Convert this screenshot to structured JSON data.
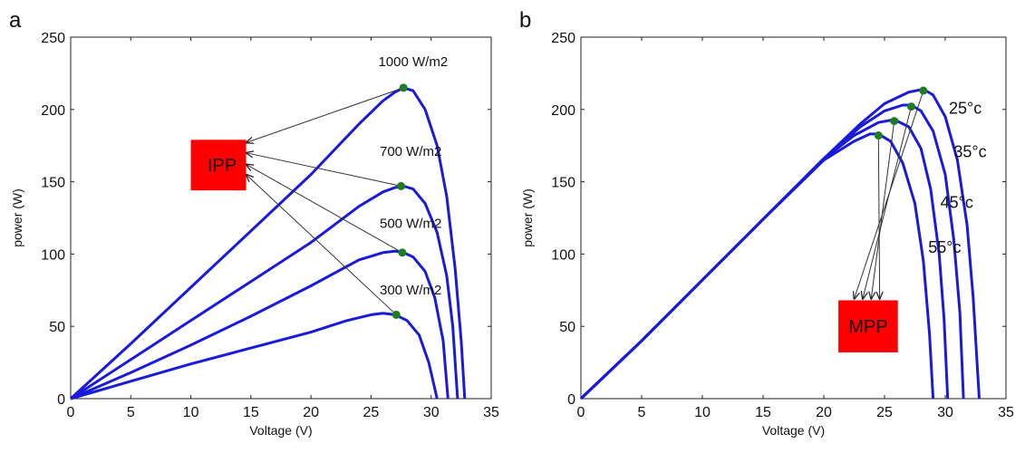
{
  "colors": {
    "curve": "#1a1adb",
    "point": "#1e7d1e",
    "box": "#ff0000",
    "arrow": "#333333"
  },
  "chart_data": [
    {
      "panel_label": "a",
      "type": "line",
      "title": "",
      "xlabel": "Voltage (V)",
      "ylabel": "power (W)",
      "xlim": [
        0,
        35
      ],
      "ylim": [
        0,
        250
      ],
      "xticks": [
        "0",
        "5",
        "10",
        "15",
        "20",
        "25",
        "30",
        "35"
      ],
      "yticks": [
        "0",
        "50",
        "100",
        "150",
        "200",
        "250"
      ],
      "grid": false,
      "series": [
        {
          "label": "1000 W/m2",
          "points": [
            [
              0,
              0
            ],
            [
              5,
              38
            ],
            [
              10,
              77
            ],
            [
              15,
              116
            ],
            [
              20,
              155
            ],
            [
              24,
              190
            ],
            [
              26,
              206
            ],
            [
              27,
              212
            ],
            [
              27.7,
              215
            ],
            [
              28.5,
              213
            ],
            [
              29.5,
              200
            ],
            [
              30.5,
              175
            ],
            [
              31.3,
              140
            ],
            [
              32,
              90
            ],
            [
              32.5,
              40
            ],
            [
              32.8,
              0
            ]
          ],
          "mpp": [
            27.7,
            215
          ],
          "label_pos": [
            28.5,
            230
          ]
        },
        {
          "label": "700 W/m2",
          "points": [
            [
              0,
              0
            ],
            [
              5,
              27
            ],
            [
              10,
              54
            ],
            [
              15,
              81
            ],
            [
              20,
              108
            ],
            [
              24,
              133
            ],
            [
              26,
              143
            ],
            [
              27,
              146
            ],
            [
              27.7,
              147
            ],
            [
              28.5,
              145
            ],
            [
              29.5,
              135
            ],
            [
              30.5,
              115
            ],
            [
              31.3,
              85
            ],
            [
              31.8,
              50
            ],
            [
              32.2,
              0
            ]
          ],
          "mpp": [
            27.5,
            147
          ],
          "label_pos": [
            28.3,
            168
          ]
        },
        {
          "label": "500 W/m2",
          "points": [
            [
              0,
              0
            ],
            [
              5,
              18
            ],
            [
              10,
              37
            ],
            [
              15,
              57
            ],
            [
              20,
              78
            ],
            [
              24,
              96
            ],
            [
              26,
              101
            ],
            [
              27,
              102
            ],
            [
              27.7,
              101
            ],
            [
              28.5,
              98
            ],
            [
              29.5,
              88
            ],
            [
              30.3,
              70
            ],
            [
              31,
              40
            ],
            [
              31.4,
              0
            ]
          ],
          "mpp": [
            27.6,
            101
          ],
          "label_pos": [
            28.3,
            118
          ]
        },
        {
          "label": "300 W/m2",
          "points": [
            [
              0,
              0
            ],
            [
              5,
              12
            ],
            [
              10,
              24
            ],
            [
              15,
              35
            ],
            [
              20,
              46
            ],
            [
              23,
              54
            ],
            [
              25,
              58
            ],
            [
              26,
              59
            ],
            [
              27,
              58
            ],
            [
              28,
              54
            ],
            [
              29,
              44
            ],
            [
              29.8,
              25
            ],
            [
              30.5,
              0
            ]
          ],
          "mpp": [
            27.1,
            58
          ],
          "label_pos": [
            28.3,
            72
          ]
        }
      ],
      "box": {
        "label": "IPP",
        "x": [
          10,
          14.6
        ],
        "y": [
          144,
          179
        ]
      },
      "arrows_to": [
        [
          14.6,
          177
        ],
        [
          14.6,
          170
        ],
        [
          14.6,
          162
        ],
        [
          14.6,
          155
        ]
      ]
    },
    {
      "panel_label": "b",
      "type": "line",
      "title": "",
      "xlabel": "Voltage (V)",
      "ylabel": "power (W)",
      "xlim": [
        0,
        35
      ],
      "ylim": [
        0,
        250
      ],
      "xticks": [
        "0",
        "5",
        "10",
        "15",
        "20",
        "25",
        "30",
        "35"
      ],
      "yticks": [
        "0",
        "50",
        "100",
        "150",
        "200",
        "250"
      ],
      "grid": false,
      "series": [
        {
          "label": "25°c",
          "points": [
            [
              0,
              0
            ],
            [
              5,
              40
            ],
            [
              10,
              82
            ],
            [
              15,
              124
            ],
            [
              20,
              166
            ],
            [
              23,
              190
            ],
            [
              25,
              204
            ],
            [
              27,
              212
            ],
            [
              28.2,
              214
            ],
            [
              29,
              210
            ],
            [
              30,
              195
            ],
            [
              31,
              165
            ],
            [
              31.8,
              120
            ],
            [
              32.3,
              70
            ],
            [
              32.8,
              0
            ]
          ],
          "mpp": [
            28.2,
            213
          ],
          "label_pos": [
            30.3,
            197
          ]
        },
        {
          "label": "35°c",
          "points": [
            [
              0,
              0
            ],
            [
              5,
              40
            ],
            [
              10,
              82
            ],
            [
              15,
              124
            ],
            [
              20,
              166
            ],
            [
              23,
              188
            ],
            [
              25,
              199
            ],
            [
              26.5,
              203
            ],
            [
              27.2,
              203
            ],
            [
              28,
              199
            ],
            [
              29,
              185
            ],
            [
              30,
              155
            ],
            [
              30.7,
              110
            ],
            [
              31.2,
              60
            ],
            [
              31.5,
              0
            ]
          ],
          "mpp": [
            27.2,
            202
          ],
          "label_pos": [
            30.7,
            167
          ]
        },
        {
          "label": "45°c",
          "points": [
            [
              0,
              0
            ],
            [
              5,
              40
            ],
            [
              10,
              82
            ],
            [
              15,
              124
            ],
            [
              20,
              166
            ],
            [
              22.5,
              182
            ],
            [
              24.5,
              191
            ],
            [
              25.8,
              193
            ],
            [
              27,
              188
            ],
            [
              28,
              173
            ],
            [
              28.8,
              145
            ],
            [
              29.5,
              100
            ],
            [
              29.9,
              55
            ],
            [
              30.2,
              0
            ]
          ],
          "mpp": [
            25.8,
            192
          ],
          "label_pos": [
            29.6,
            132
          ]
        },
        {
          "label": "55°c",
          "points": [
            [
              0,
              0
            ],
            [
              5,
              40
            ],
            [
              10,
              82
            ],
            [
              15,
              124
            ],
            [
              20,
              165
            ],
            [
              22.5,
              178
            ],
            [
              23.8,
              183
            ],
            [
              24.5,
              183
            ],
            [
              25.5,
              178
            ],
            [
              26.5,
              163
            ],
            [
              27.5,
              135
            ],
            [
              28.2,
              95
            ],
            [
              28.7,
              45
            ],
            [
              29,
              0
            ]
          ],
          "mpp": [
            24.5,
            182
          ],
          "label_pos": [
            28.6,
            101
          ]
        }
      ],
      "box": {
        "label": "MPP",
        "x": [
          21.2,
          26.1
        ],
        "y": [
          32,
          68
        ]
      },
      "arrows_to": [
        [
          22.5,
          69
        ],
        [
          23.2,
          69
        ],
        [
          23.9,
          69
        ],
        [
          24.6,
          69
        ]
      ]
    }
  ]
}
